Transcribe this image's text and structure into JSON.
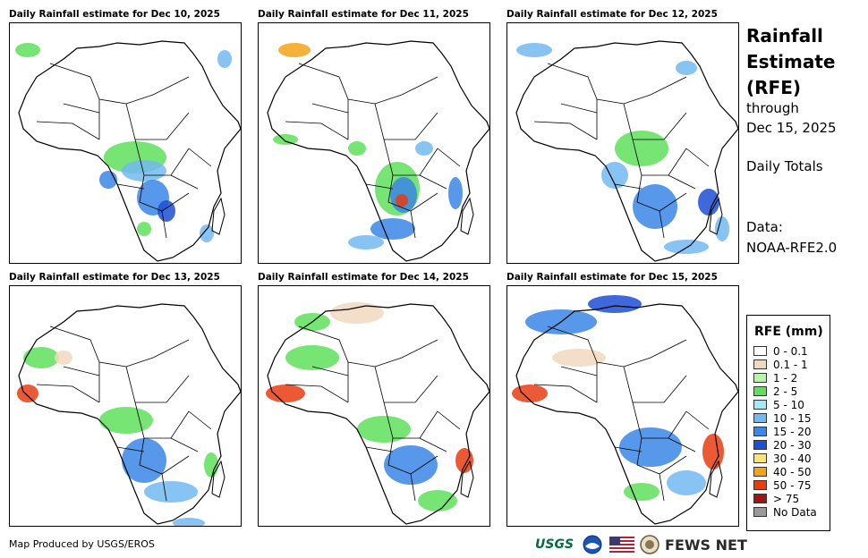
{
  "panels": [
    {
      "title": "Daily Rainfall estimate for Dec 10, 2025",
      "day": 10
    },
    {
      "title": "Daily Rainfall estimate for Dec 11, 2025",
      "day": 11
    },
    {
      "title": "Daily Rainfall estimate for Dec 12, 2025",
      "day": 12
    },
    {
      "title": "Daily Rainfall estimate for Dec 13, 2025",
      "day": 13
    },
    {
      "title": "Daily Rainfall estimate for Dec 14, 2025",
      "day": 14
    },
    {
      "title": "Daily Rainfall estimate for Dec 15, 2025",
      "day": 15
    }
  ],
  "side": {
    "title_line1": "Rainfall",
    "title_line2": "Estimate",
    "title_line3": "(RFE)",
    "through": "through",
    "date": "Dec 15, 2025",
    "daily": "Daily Totals",
    "data_label": "Data:",
    "data_source": "NOAA-RFE2.0"
  },
  "legend": {
    "title": "RFE (mm)",
    "items": [
      {
        "label": "0 - 0.1",
        "color": "#ffffff"
      },
      {
        "label": "0.1 - 1",
        "color": "#f1d9bf"
      },
      {
        "label": "1 - 2",
        "color": "#b9f4a9"
      },
      {
        "label": "2 - 5",
        "color": "#5fe05a"
      },
      {
        "label": "5 - 10",
        "color": "#a8e8f4"
      },
      {
        "label": "10 - 15",
        "color": "#72b8f1"
      },
      {
        "label": "15 - 20",
        "color": "#3b86e6"
      },
      {
        "label": "20 - 30",
        "color": "#1d4fd4"
      },
      {
        "label": "30 - 40",
        "color": "#f9e67b"
      },
      {
        "label": "40 - 50",
        "color": "#f4a318"
      },
      {
        "label": "50 - 75",
        "color": "#e83c12"
      },
      {
        "label": "> 75",
        "color": "#a01414"
      },
      {
        "label": "No Data",
        "color": "#9a9a9a"
      }
    ]
  },
  "credit": "Map Produced by USGS/EROS",
  "logos": {
    "usgs": "USGS",
    "fews": "FEWS NET"
  }
}
